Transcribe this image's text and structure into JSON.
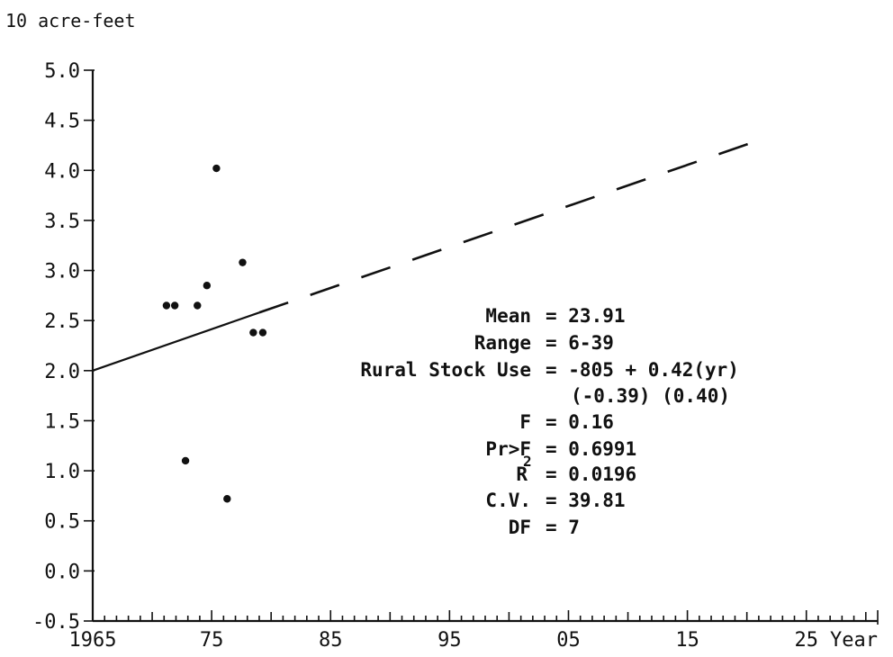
{
  "chart_data": {
    "type": "scatter",
    "ylabel": "10 acre-feet",
    "xlabel": "Year",
    "xlim": [
      1965,
      2031
    ],
    "ylim": [
      -0.5,
      5.0
    ],
    "x_ticks": [
      1965,
      1975,
      1985,
      1995,
      2005,
      2015,
      2025
    ],
    "x_tick_labels": [
      "1965",
      "75",
      "85",
      "95",
      "05",
      "15",
      "25"
    ],
    "y_ticks": [
      5.0,
      4.5,
      4.0,
      3.5,
      3.0,
      2.5,
      2.0,
      1.5,
      1.0,
      0.5,
      0.0,
      -0.5
    ],
    "y_tick_labels": [
      "5.0",
      "4.5",
      "4.0",
      "3.5",
      "3.0",
      "2.5",
      "2.0",
      "1.5",
      "1.0",
      "0.5",
      "0.0",
      "-0.5"
    ],
    "points": [
      {
        "x": 1971.2,
        "y": 2.65
      },
      {
        "x": 1971.9,
        "y": 2.65
      },
      {
        "x": 1972.8,
        "y": 1.1
      },
      {
        "x": 1973.8,
        "y": 2.65
      },
      {
        "x": 1974.6,
        "y": 2.85
      },
      {
        "x": 1975.4,
        "y": 4.02
      },
      {
        "x": 1976.3,
        "y": 0.72
      },
      {
        "x": 1977.6,
        "y": 3.08
      },
      {
        "x": 1978.5,
        "y": 2.38
      },
      {
        "x": 1979.3,
        "y": 2.38
      }
    ],
    "fit_line": {
      "solid": {
        "x": [
          1965,
          1979
        ],
        "y": [
          2.0,
          2.58
        ]
      },
      "dashed": {
        "x": [
          1979,
          2021
        ],
        "y": [
          2.58,
          4.3
        ]
      }
    },
    "stats": [
      {
        "label": "Mean",
        "value": "= 23.91"
      },
      {
        "label": "Range",
        "value": "= 6-39"
      },
      {
        "label": "Rural Stock Use",
        "value": "= -805 + 0.42(yr)"
      },
      {
        "label": "",
        "value": "(-0.39) (0.40)"
      },
      {
        "label": "F",
        "value": "= 0.16"
      },
      {
        "label": "Pr>F",
        "value": "= 0.6991"
      },
      {
        "label": "R",
        "value": "= 0.0196"
      },
      {
        "label": "C.V.",
        "value": "= 39.81"
      },
      {
        "label": "DF",
        "value": "= 7"
      }
    ],
    "r_squared_superscript": "2"
  }
}
